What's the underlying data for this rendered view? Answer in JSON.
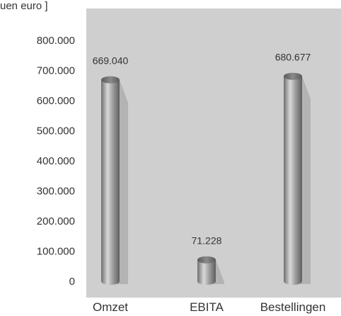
{
  "chart_data": {
    "type": "bar",
    "unit_label": "uen euro ]",
    "categories": [
      "Omzet",
      "EBITA",
      "Bestellingen"
    ],
    "values": [
      669040,
      71228,
      680677
    ],
    "value_labels": [
      "669.040",
      "71.228",
      "680.677"
    ],
    "y_ticks": [
      {
        "value": 0,
        "label": "0"
      },
      {
        "value": 100000,
        "label": "100.000"
      },
      {
        "value": 200000,
        "label": "200.000"
      },
      {
        "value": 300000,
        "label": "300.000"
      },
      {
        "value": 400000,
        "label": "400.000"
      },
      {
        "value": 500000,
        "label": "500.000"
      },
      {
        "value": 600000,
        "label": "600.000"
      },
      {
        "value": 700000,
        "label": "700.000"
      },
      {
        "value": 800000,
        "label": "800.000"
      }
    ],
    "ylim": [
      0,
      900000
    ],
    "grid": false,
    "colors": {
      "plot_background": "#cfcfcf",
      "bar": "#8c8c8c",
      "bar_highlight": "#d6d6d6",
      "bar_shadow": "#b3b3b3",
      "text": "#333333"
    }
  }
}
